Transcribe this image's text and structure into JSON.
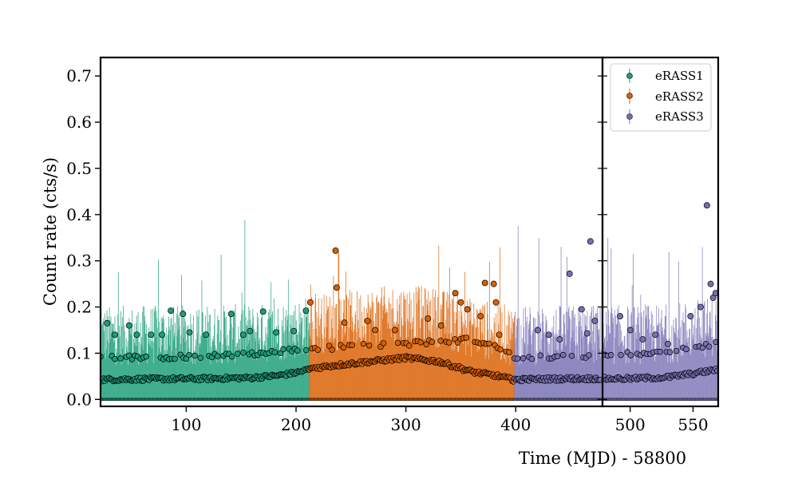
{
  "chart_data": {
    "type": "scatter",
    "title": "",
    "xlabel": "Time (MJD) - 58800",
    "ylabel": "Count rate (cts/s)",
    "ylim": [
      -0.015,
      0.74
    ],
    "yticks": [
      0.0,
      0.1,
      0.2,
      0.3,
      0.4,
      0.5,
      0.6,
      0.7
    ],
    "ytick_labels": [
      "0.0",
      "0.1",
      "0.2",
      "0.3",
      "0.4",
      "0.5",
      "0.6",
      "0.7"
    ],
    "panels": [
      {
        "xlim": [
          22,
          479
        ],
        "xticks": [
          100,
          200,
          300,
          400
        ],
        "xtick_labels": [
          "100",
          "200",
          "300",
          "400"
        ]
      },
      {
        "xlim": [
          478,
          570
        ],
        "xticks": [
          500,
          550
        ],
        "xtick_labels": [
          "500",
          "550"
        ]
      }
    ],
    "legend_position": "top-right",
    "series": [
      {
        "name": "eRASS1",
        "color": "#1b9e77",
        "x_range": [
          22,
          212
        ],
        "trend_points": [
          [
            25,
            0.043
          ],
          [
            60,
            0.044
          ],
          [
            120,
            0.045
          ],
          [
            160,
            0.047
          ],
          [
            185,
            0.052
          ],
          [
            200,
            0.058
          ],
          [
            212,
            0.065
          ]
        ],
        "upper_band_points": [
          [
            25,
            0.09
          ],
          [
            120,
            0.093
          ],
          [
            170,
            0.1
          ],
          [
            212,
            0.11
          ]
        ],
        "outliers": [
          [
            28,
            0.165
          ],
          [
            35,
            0.14
          ],
          [
            48,
            0.16
          ],
          [
            55,
            0.14
          ],
          [
            68,
            0.14
          ],
          [
            78,
            0.14
          ],
          [
            86,
            0.192
          ],
          [
            97,
            0.185
          ],
          [
            103,
            0.145
          ],
          [
            118,
            0.14
          ],
          [
            141,
            0.185
          ],
          [
            152,
            0.14
          ],
          [
            158,
            0.148
          ],
          [
            170,
            0.19
          ],
          [
            182,
            0.145
          ],
          [
            198,
            0.148
          ],
          [
            209,
            0.192
          ]
        ]
      },
      {
        "name": "eRASS2",
        "color": "#d95f02",
        "x_range": [
          212,
          399
        ],
        "trend_points": [
          [
            212,
            0.067
          ],
          [
            240,
            0.075
          ],
          [
            280,
            0.085
          ],
          [
            300,
            0.09
          ],
          [
            330,
            0.082
          ],
          [
            360,
            0.06
          ],
          [
            385,
            0.05
          ],
          [
            399,
            0.042
          ]
        ],
        "upper_band_points": [
          [
            212,
            0.11
          ],
          [
            300,
            0.12
          ],
          [
            360,
            0.13
          ],
          [
            399,
            0.1
          ]
        ],
        "outliers": [
          [
            213,
            0.21
          ],
          [
            236,
            0.322
          ],
          [
            237,
            0.242
          ],
          [
            244,
            0.166
          ],
          [
            265,
            0.17
          ],
          [
            272,
            0.15
          ],
          [
            290,
            0.15
          ],
          [
            320,
            0.175
          ],
          [
            332,
            0.16
          ],
          [
            345,
            0.23
          ],
          [
            350,
            0.21
          ],
          [
            356,
            0.195
          ],
          [
            368,
            0.18
          ],
          [
            372,
            0.252
          ],
          [
            380,
            0.25
          ],
          [
            382,
            0.21
          ],
          [
            385,
            0.14
          ]
        ]
      },
      {
        "name": "eRASS3",
        "color": "#7570b3",
        "x_range": [
          399,
          570
        ],
        "trend_points": [
          [
            399,
            0.043
          ],
          [
            450,
            0.045
          ],
          [
            500,
            0.045
          ],
          [
            530,
            0.048
          ],
          [
            555,
            0.058
          ],
          [
            570,
            0.065
          ]
        ],
        "upper_band_points": [
          [
            399,
            0.09
          ],
          [
            470,
            0.095
          ],
          [
            520,
            0.1
          ],
          [
            570,
            0.12
          ]
        ],
        "outliers": [
          [
            420,
            0.15
          ],
          [
            430,
            0.14
          ],
          [
            440,
            0.13
          ],
          [
            449,
            0.272
          ],
          [
            460,
            0.195
          ],
          [
            465,
            0.143
          ],
          [
            468,
            0.342
          ],
          [
            472,
            0.17
          ],
          [
            492,
            0.18
          ],
          [
            500,
            0.15
          ],
          [
            510,
            0.13
          ],
          [
            520,
            0.14
          ],
          [
            530,
            0.12
          ],
          [
            548,
            0.18
          ],
          [
            556,
            0.2
          ],
          [
            561,
            0.42
          ],
          [
            564,
            0.25
          ],
          [
            566,
            0.22
          ],
          [
            568,
            0.23
          ]
        ]
      }
    ]
  }
}
